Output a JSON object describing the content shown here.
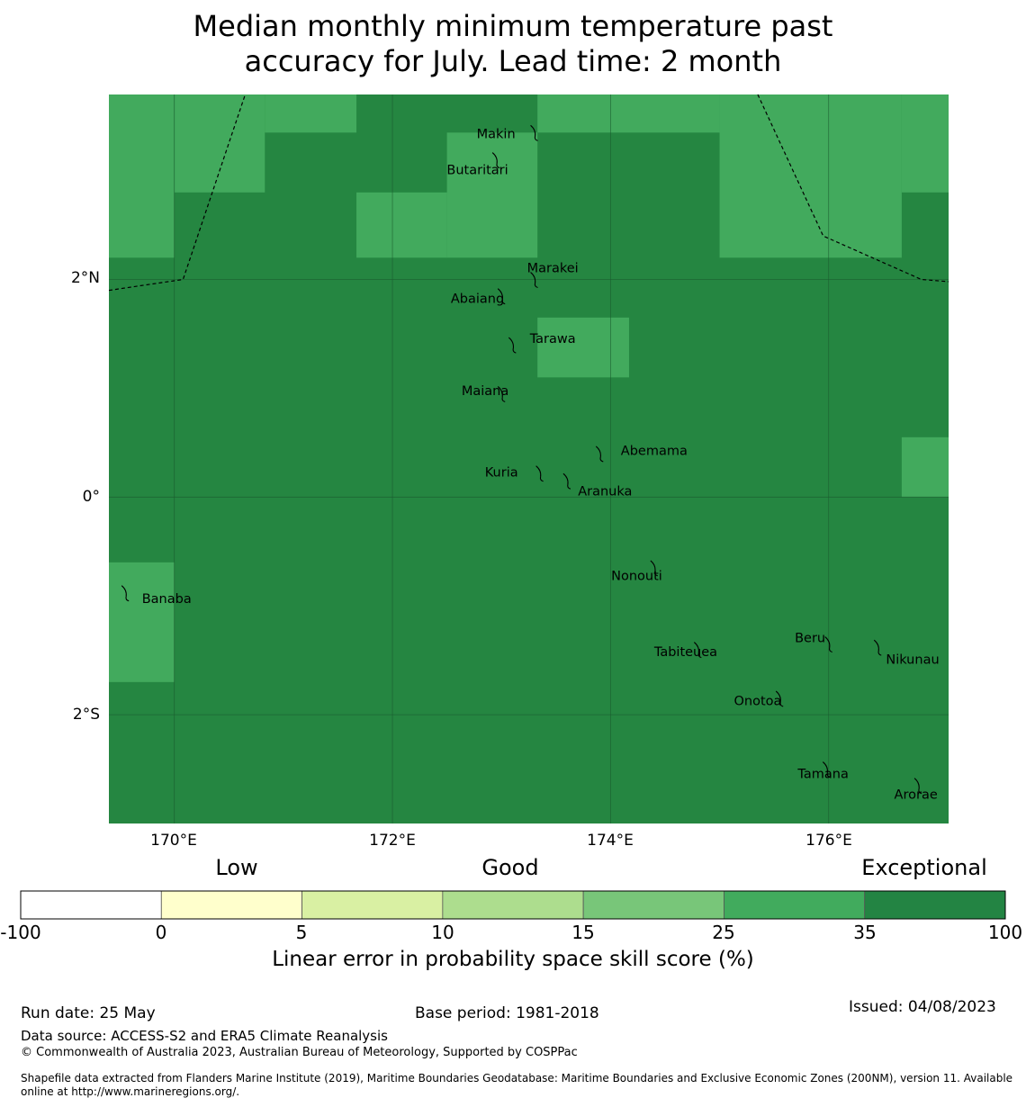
{
  "title": {
    "line1": "Median monthly minimum temperature past",
    "line2": "accuracy for July. Lead time: 2 month"
  },
  "map": {
    "extent": {
      "lon": [
        169.4,
        177.1
      ],
      "lat": [
        -3.0,
        3.7
      ]
    },
    "grid_lines": {
      "lon": [
        170,
        172,
        174,
        176
      ],
      "lat": [
        2,
        0,
        -2
      ]
    },
    "skill_colors": {
      "exceptional": "#258641",
      "very_good": "#42aa5d"
    },
    "lighter_cells": [
      {
        "lon": [
          169.4,
          170.0
        ],
        "lat": [
          2.2,
          3.7
        ]
      },
      {
        "lon": [
          170.0,
          170.83
        ],
        "lat": [
          2.8,
          3.7
        ]
      },
      {
        "lon": [
          170.83,
          171.67
        ],
        "lat": [
          3.35,
          3.7
        ]
      },
      {
        "lon": [
          171.67,
          172.5
        ],
        "lat": [
          2.2,
          2.8
        ]
      },
      {
        "lon": [
          172.5,
          173.33
        ],
        "lat": [
          2.2,
          3.35
        ]
      },
      {
        "lon": [
          173.33,
          175.0
        ],
        "lat": [
          3.35,
          3.7
        ]
      },
      {
        "lon": [
          175.0,
          176.67
        ],
        "lat": [
          2.2,
          3.7
        ]
      },
      {
        "lon": [
          176.67,
          177.1
        ],
        "lat": [
          2.8,
          3.7
        ]
      },
      {
        "lon": [
          173.33,
          174.17
        ],
        "lat": [
          1.1,
          1.65
        ]
      },
      {
        "lon": [
          176.67,
          177.1
        ],
        "lat": [
          0.0,
          0.55
        ]
      },
      {
        "lon": [
          169.4,
          170.0
        ],
        "lat": [
          -1.7,
          -0.6
        ]
      }
    ],
    "boundaries": [
      [
        [
          169.4,
          1.9
        ],
        [
          170.08,
          2.0
        ],
        [
          170.65,
          3.7
        ]
      ],
      [
        [
          175.35,
          3.7
        ],
        [
          175.95,
          2.4
        ],
        [
          176.85,
          2.0
        ],
        [
          177.1,
          1.98
        ]
      ]
    ],
    "islands": [
      {
        "name": "Makin",
        "lon": 173.3,
        "lat": 3.35,
        "label_lon": 172.95,
        "label_lat": 3.33
      },
      {
        "name": "Butaritari",
        "lon": 172.95,
        "lat": 3.1,
        "label_lon": 172.78,
        "label_lat": 3.0
      },
      {
        "name": "Marakei",
        "lon": 173.3,
        "lat": 2.0,
        "label_lon": 173.47,
        "label_lat": 2.1
      },
      {
        "name": "Abaiang",
        "lon": 173.0,
        "lat": 1.85,
        "label_lon": 172.78,
        "label_lat": 1.82
      },
      {
        "name": "Tarawa",
        "lon": 173.1,
        "lat": 1.4,
        "label_lon": 173.47,
        "label_lat": 1.45
      },
      {
        "name": "Maiana",
        "lon": 173.0,
        "lat": 0.95,
        "label_lon": 172.85,
        "label_lat": 0.97
      },
      {
        "name": "Abemama",
        "lon": 173.9,
        "lat": 0.4,
        "label_lon": 174.4,
        "label_lat": 0.42
      },
      {
        "name": "Kuria",
        "lon": 173.35,
        "lat": 0.22,
        "label_lon": 173.0,
        "label_lat": 0.22
      },
      {
        "name": "Aranuka",
        "lon": 173.6,
        "lat": 0.15,
        "label_lon": 173.95,
        "label_lat": 0.05
      },
      {
        "name": "Nonouti",
        "lon": 174.4,
        "lat": -0.65,
        "label_lon": 174.24,
        "label_lat": -0.73
      },
      {
        "name": "Banaba",
        "lon": 169.55,
        "lat": -0.88,
        "label_lon": 169.93,
        "label_lat": -0.94
      },
      {
        "name": "Tabiteuea",
        "lon": 174.8,
        "lat": -1.4,
        "label_lon": 174.69,
        "label_lat": -1.43
      },
      {
        "name": "Beru",
        "lon": 176.0,
        "lat": -1.35,
        "label_lon": 175.83,
        "label_lat": -1.3
      },
      {
        "name": "Nikunau",
        "lon": 176.45,
        "lat": -1.38,
        "label_lon": 176.77,
        "label_lat": -1.5
      },
      {
        "name": "Onotoa",
        "lon": 175.55,
        "lat": -1.85,
        "label_lon": 175.35,
        "label_lat": -1.88
      },
      {
        "name": "Tamana",
        "lon": 175.98,
        "lat": -2.5,
        "label_lon": 175.95,
        "label_lat": -2.55
      },
      {
        "name": "Arorae",
        "lon": 176.82,
        "lat": -2.65,
        "label_lon": 176.8,
        "label_lat": -2.74
      }
    ]
  },
  "axes": {
    "x_ticks": [
      "170°E",
      "172°E",
      "174°E",
      "176°E"
    ],
    "y_ticks": [
      "2°N",
      "0°",
      "2°S"
    ]
  },
  "colorbar": {
    "category_labels": [
      "Low",
      "Good",
      "Exceptional"
    ],
    "ticks": [
      "-100",
      "0",
      "5",
      "10",
      "15",
      "25",
      "35",
      "100"
    ],
    "colors": [
      "#ffffff",
      "#ffffcc",
      "#d9f0a3",
      "#addd8e",
      "#78c679",
      "#41ab5d",
      "#238443"
    ],
    "label": "Linear error in probability space skill score (%)"
  },
  "footer": {
    "run_date": "Run date: 25 May",
    "base_period": "Base period: 1981-2018",
    "issued": "Issued: 04/08/2023",
    "data_source": "Data source: ACCESS-S2 and ERA5 Climate Reanalysis",
    "copyright": "© Commonwealth of Australia 2023, Australian Bureau of Meteorology, Supported by COSPPac",
    "shapefile": "Shapefile data extracted from Flanders Marine Institute (2019), Maritime Boundaries Geodatabase: Maritime Boundaries and Exclusive Economic Zones (200NM), version 11. Available online at http://www.marineregions.org/."
  }
}
